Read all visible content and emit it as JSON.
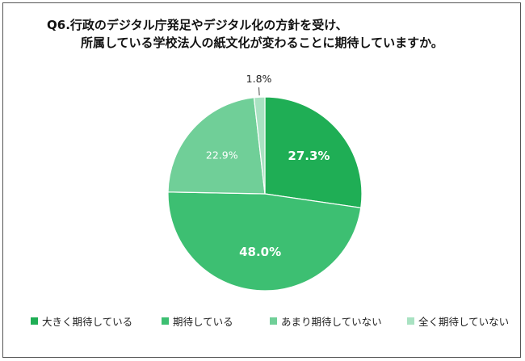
{
  "title": {
    "line1": "Q6.行政のデジタル庁発足やデジタル化の方針を受け、",
    "line2": "所属している学校法人の紙文化が変わることに期待していますか。"
  },
  "chart_data": {
    "type": "pie",
    "start_angle_deg": 0,
    "direction": "clockwise",
    "slices": [
      {
        "label": "大きく期待している",
        "value": 27.3,
        "display": "27.3%",
        "color": "#1fae55",
        "label_color": "#ffffff",
        "label_bold": true
      },
      {
        "label": "期待している",
        "value": 48.0,
        "display": "48.0%",
        "color": "#3dbf72",
        "label_color": "#ffffff",
        "label_bold": true
      },
      {
        "label": "あまり期待していない",
        "value": 22.9,
        "display": "22.9%",
        "color": "#70cf98",
        "label_color": "#ffffff",
        "label_bold": false
      },
      {
        "label": "全く期待していない",
        "value": 1.8,
        "display": "1.8%",
        "color": "#a9e2c2",
        "label_color": "#222222",
        "label_bold": false,
        "label_outside": true
      }
    ],
    "legend_position": "bottom"
  },
  "legend": [
    {
      "label": "大きく期待している",
      "color": "#1fae55"
    },
    {
      "label": "期待している",
      "color": "#3dbf72"
    },
    {
      "label": "あまり期待していない",
      "color": "#70cf98"
    },
    {
      "label": "全く期待していない",
      "color": "#a9e2c2"
    }
  ]
}
